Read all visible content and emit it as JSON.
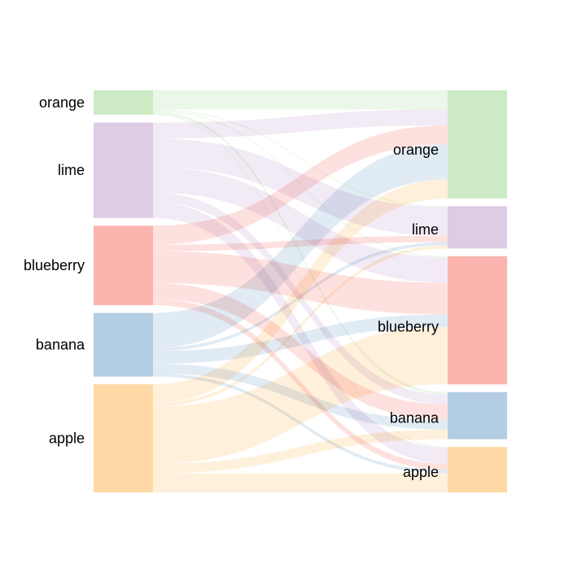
{
  "diagram": {
    "type": "sankey",
    "flow_opacity": 0.4,
    "left_nodes": [
      {
        "key": "orange",
        "label": "orange",
        "color": "#CCEBC5"
      },
      {
        "key": "lime",
        "label": "lime",
        "color": "#DECBE4"
      },
      {
        "key": "blueberry",
        "label": "blueberry",
        "color": "#FBB4AE"
      },
      {
        "key": "banana",
        "label": "banana",
        "color": "#B3CDE3"
      },
      {
        "key": "apple",
        "label": "apple",
        "color": "#FED9A6"
      }
    ],
    "right_nodes": [
      {
        "key": "orange",
        "label": "orange",
        "color": "#CCEBC5"
      },
      {
        "key": "lime",
        "label": "lime",
        "color": "#DECBE4"
      },
      {
        "key": "blueberry",
        "label": "blueberry",
        "color": "#FBB4AE"
      },
      {
        "key": "banana",
        "label": "banana",
        "color": "#B3CDE3"
      },
      {
        "key": "apple",
        "label": "apple",
        "color": "#FED9A6"
      }
    ],
    "flows": [
      {
        "from": "orange",
        "to": "orange",
        "value": 6
      },
      {
        "from": "orange",
        "to": "lime",
        "value": 0.3
      },
      {
        "from": "orange",
        "to": "blueberry",
        "value": 0.3
      },
      {
        "from": "orange",
        "to": "banana",
        "value": 0.8
      },
      {
        "from": "orange",
        "to": "apple",
        "value": 0.3
      },
      {
        "from": "lime",
        "to": "orange",
        "value": 5
      },
      {
        "from": "lime",
        "to": "lime",
        "value": 9
      },
      {
        "from": "lime",
        "to": "blueberry",
        "value": 8
      },
      {
        "from": "lime",
        "to": "banana",
        "value": 3
      },
      {
        "from": "lime",
        "to": "apple",
        "value": 5
      },
      {
        "from": "blueberry",
        "to": "orange",
        "value": 6
      },
      {
        "from": "blueberry",
        "to": "lime",
        "value": 2
      },
      {
        "from": "blueberry",
        "to": "blueberry",
        "value": 10
      },
      {
        "from": "blueberry",
        "to": "banana",
        "value": 5
      },
      {
        "from": "blueberry",
        "to": "apple",
        "value": 2
      },
      {
        "from": "banana",
        "to": "orange",
        "value": 11
      },
      {
        "from": "banana",
        "to": "lime",
        "value": 1
      },
      {
        "from": "banana",
        "to": "blueberry",
        "value": 4
      },
      {
        "from": "banana",
        "to": "banana",
        "value": 3
      },
      {
        "from": "banana",
        "to": "apple",
        "value": 1
      },
      {
        "from": "apple",
        "to": "orange",
        "value": 6
      },
      {
        "from": "apple",
        "to": "lime",
        "value": 1
      },
      {
        "from": "apple",
        "to": "blueberry",
        "value": 18
      },
      {
        "from": "apple",
        "to": "banana",
        "value": 3
      },
      {
        "from": "apple",
        "to": "apple",
        "value": 6
      }
    ]
  }
}
